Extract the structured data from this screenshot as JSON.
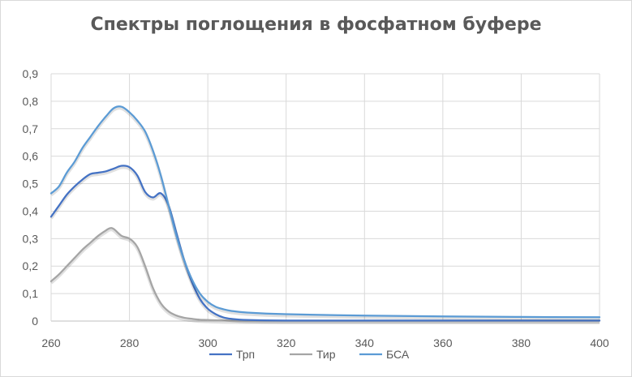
{
  "chart_data": {
    "type": "line",
    "title": "Спектры поглощения в фосфатном буфере",
    "xlabel": "",
    "ylabel": "",
    "xlim": [
      260,
      400
    ],
    "ylim": [
      0,
      0.9
    ],
    "x_ticks": [
      "260",
      "280",
      "300",
      "320",
      "340",
      "360",
      "380",
      "400"
    ],
    "y_ticks": [
      "0",
      "0,1",
      "0,2",
      "0,3",
      "0,4",
      "0,5",
      "0,6",
      "0,7",
      "0,8",
      "0,9"
    ],
    "grid": "vertical and horizontal",
    "legend_position": "bottom",
    "series": [
      {
        "name": "Трп",
        "color": "#4472c4",
        "x": [
          260,
          262,
          264,
          266,
          268,
          270,
          272,
          274,
          276,
          278,
          280,
          282,
          284,
          286,
          288,
          290,
          292,
          294,
          296,
          298,
          300,
          302,
          304,
          306,
          310,
          320,
          340,
          360,
          380,
          400
        ],
        "y": [
          0.38,
          0.42,
          0.46,
          0.49,
          0.515,
          0.535,
          0.54,
          0.545,
          0.555,
          0.565,
          0.56,
          0.53,
          0.47,
          0.45,
          0.465,
          0.42,
          0.32,
          0.22,
          0.14,
          0.08,
          0.045,
          0.025,
          0.013,
          0.008,
          0.004,
          0.002,
          0.002,
          0.002,
          0.002,
          0.002
        ]
      },
      {
        "name": "Тир",
        "color": "#a5a5a5",
        "x": [
          260,
          262,
          264,
          266,
          268,
          270,
          272,
          274,
          275,
          276,
          278,
          280,
          282,
          284,
          286,
          288,
          290,
          292,
          294,
          296,
          298,
          300,
          304,
          310,
          320,
          340,
          360,
          380,
          400
        ],
        "y": [
          0.145,
          0.17,
          0.2,
          0.23,
          0.26,
          0.285,
          0.31,
          0.33,
          0.338,
          0.335,
          0.31,
          0.3,
          0.27,
          0.2,
          0.12,
          0.065,
          0.035,
          0.02,
          0.012,
          0.008,
          0.005,
          0.004,
          0.002,
          0.001,
          0.001,
          0.001,
          0.001,
          0.001,
          0.001
        ]
      },
      {
        "name": "БСА",
        "color": "#5b9bd5",
        "x": [
          260,
          262,
          264,
          266,
          268,
          270,
          272,
          274,
          276,
          278,
          280,
          282,
          284,
          286,
          288,
          290,
          292,
          294,
          296,
          298,
          300,
          302,
          304,
          306,
          310,
          320,
          340,
          360,
          380,
          400
        ],
        "y": [
          0.465,
          0.49,
          0.54,
          0.58,
          0.63,
          0.67,
          0.71,
          0.745,
          0.775,
          0.78,
          0.76,
          0.73,
          0.69,
          0.62,
          0.53,
          0.42,
          0.31,
          0.22,
          0.15,
          0.1,
          0.07,
          0.052,
          0.043,
          0.037,
          0.031,
          0.025,
          0.02,
          0.017,
          0.015,
          0.014
        ]
      }
    ]
  }
}
